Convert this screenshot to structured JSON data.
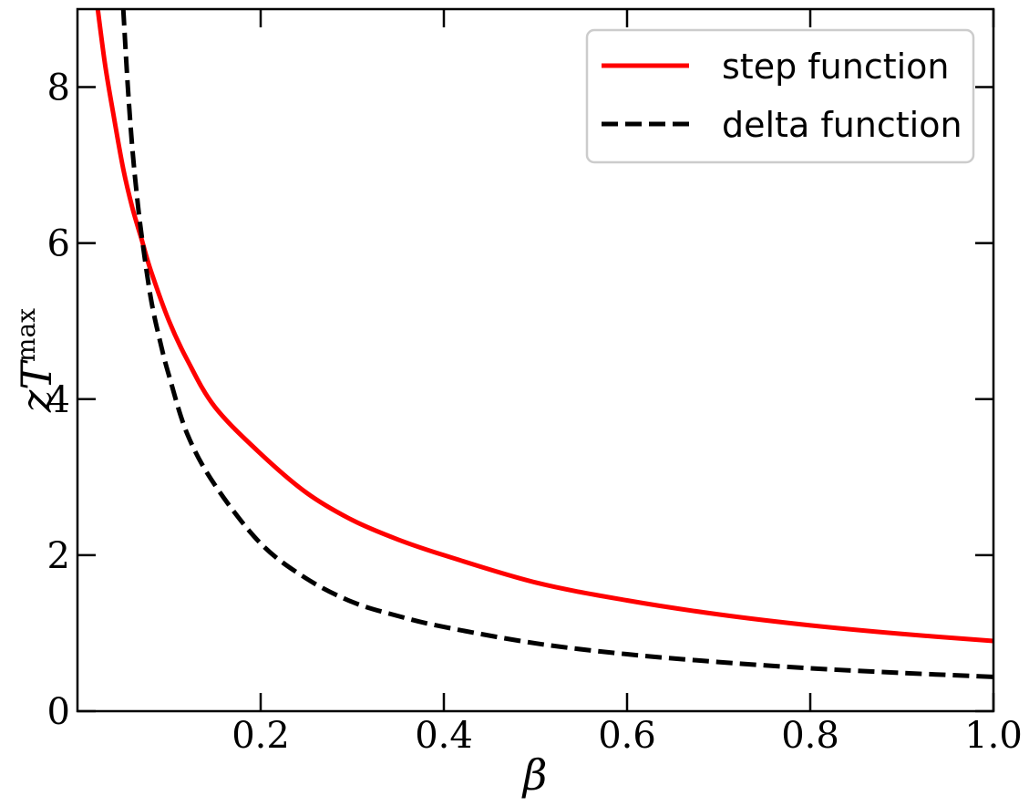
{
  "chart_data": {
    "type": "line",
    "xlabel": "β",
    "ylabel": {
      "base": "zT",
      "sup": "max"
    },
    "xlim": [
      0.0,
      1.0
    ],
    "ylim": [
      0,
      9
    ],
    "xticks": [
      0.2,
      0.4,
      0.6,
      0.8,
      1.0
    ],
    "xtick_labels": [
      "0.2",
      "0.4",
      "0.6",
      "0.8",
      "1.0"
    ],
    "yticks": [
      0,
      2,
      4,
      6,
      8
    ],
    "ytick_labels": [
      "0",
      "2",
      "4",
      "6",
      "8"
    ],
    "grid": false,
    "legend_position": "top-right",
    "series": [
      {
        "name": "step function",
        "color": "#ff0000",
        "dash": "solid",
        "x": [
          0.02,
          0.03,
          0.04,
          0.05,
          0.06,
          0.07,
          0.08,
          0.1,
          0.12,
          0.15,
          0.2,
          0.25,
          0.3,
          0.35,
          0.4,
          0.5,
          0.6,
          0.7,
          0.8,
          0.9,
          1.0
        ],
        "y": [
          9.2,
          8.3,
          7.6,
          6.95,
          6.45,
          6.05,
          5.65,
          5.0,
          4.5,
          3.9,
          3.3,
          2.8,
          2.45,
          2.2,
          2.0,
          1.65,
          1.42,
          1.24,
          1.1,
          0.99,
          0.9
        ]
      },
      {
        "name": "delta function",
        "color": "#000000",
        "dash": "dashed",
        "x": [
          0.05,
          0.055,
          0.06,
          0.065,
          0.07,
          0.08,
          0.09,
          0.1,
          0.12,
          0.15,
          0.2,
          0.25,
          0.3,
          0.35,
          0.4,
          0.5,
          0.6,
          0.7,
          0.8,
          0.9,
          1.0
        ],
        "y": [
          9.0,
          8.0,
          7.2,
          6.6,
          6.1,
          5.3,
          4.75,
          4.3,
          3.55,
          2.9,
          2.15,
          1.7,
          1.4,
          1.22,
          1.08,
          0.87,
          0.73,
          0.63,
          0.55,
          0.49,
          0.44
        ]
      }
    ]
  }
}
